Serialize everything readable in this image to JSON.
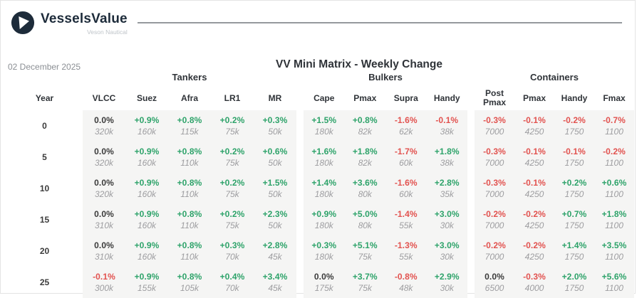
{
  "brand": {
    "name": "VesselsValue",
    "subtitle": "Veson Nautical"
  },
  "date": "02 December 2025",
  "title": "VV Mini Matrix - Weekly Change",
  "colors": {
    "positive": "#2ea36a",
    "negative": "#e2524f",
    "neutral": "#3b3b3b",
    "value_text": "#9d9da0",
    "block_bg": "#f5f5f4",
    "brand_navy": "#1d2b3a",
    "rule": "#95999d",
    "date_text": "#8b8f94",
    "header_text": "#2f3338"
  },
  "table": {
    "year_header": "Year",
    "groups": [
      {
        "label": "Tankers",
        "columns": [
          "VLCC",
          "Suez",
          "Afra",
          "LR1",
          "MR"
        ]
      },
      {
        "label": "Bulkers",
        "columns": [
          "Cape",
          "Pmax",
          "Supra",
          "Handy"
        ]
      },
      {
        "label": "Containers",
        "columns": [
          "Post Pmax",
          "Pmax",
          "Handy",
          "Fmax"
        ]
      }
    ],
    "rows": [
      {
        "year": "0",
        "cells": [
          [
            {
              "pct": "0.0%",
              "val": "320k"
            },
            {
              "pct": "+0.9%",
              "val": "160k"
            },
            {
              "pct": "+0.8%",
              "val": "115k"
            },
            {
              "pct": "+0.2%",
              "val": "75k"
            },
            {
              "pct": "+0.3%",
              "val": "50k"
            }
          ],
          [
            {
              "pct": "+1.5%",
              "val": "180k"
            },
            {
              "pct": "+0.8%",
              "val": "82k"
            },
            {
              "pct": "-1.6%",
              "val": "62k"
            },
            {
              "pct": "-0.1%",
              "val": "38k"
            }
          ],
          [
            {
              "pct": "-0.3%",
              "val": "7000"
            },
            {
              "pct": "-0.1%",
              "val": "4250"
            },
            {
              "pct": "-0.2%",
              "val": "1750"
            },
            {
              "pct": "-0.7%",
              "val": "1100"
            }
          ]
        ]
      },
      {
        "year": "5",
        "cells": [
          [
            {
              "pct": "0.0%",
              "val": "320k"
            },
            {
              "pct": "+0.9%",
              "val": "160k"
            },
            {
              "pct": "+0.8%",
              "val": "110k"
            },
            {
              "pct": "+0.2%",
              "val": "75k"
            },
            {
              "pct": "+0.6%",
              "val": "50k"
            }
          ],
          [
            {
              "pct": "+1.6%",
              "val": "180k"
            },
            {
              "pct": "+1.8%",
              "val": "82k"
            },
            {
              "pct": "-1.7%",
              "val": "60k"
            },
            {
              "pct": "+1.8%",
              "val": "38k"
            }
          ],
          [
            {
              "pct": "-0.3%",
              "val": "7000"
            },
            {
              "pct": "-0.1%",
              "val": "4250"
            },
            {
              "pct": "-0.1%",
              "val": "1750"
            },
            {
              "pct": "-0.2%",
              "val": "1100"
            }
          ]
        ]
      },
      {
        "year": "10",
        "cells": [
          [
            {
              "pct": "0.0%",
              "val": "320k"
            },
            {
              "pct": "+0.9%",
              "val": "160k"
            },
            {
              "pct": "+0.8%",
              "val": "110k"
            },
            {
              "pct": "+0.2%",
              "val": "75k"
            },
            {
              "pct": "+1.5%",
              "val": "50k"
            }
          ],
          [
            {
              "pct": "+1.4%",
              "val": "180k"
            },
            {
              "pct": "+3.6%",
              "val": "80k"
            },
            {
              "pct": "-1.6%",
              "val": "60k"
            },
            {
              "pct": "+2.8%",
              "val": "35k"
            }
          ],
          [
            {
              "pct": "-0.3%",
              "val": "7000"
            },
            {
              "pct": "-0.1%",
              "val": "4250"
            },
            {
              "pct": "+0.2%",
              "val": "1750"
            },
            {
              "pct": "+0.6%",
              "val": "1100"
            }
          ]
        ]
      },
      {
        "year": "15",
        "cells": [
          [
            {
              "pct": "0.0%",
              "val": "310k"
            },
            {
              "pct": "+0.9%",
              "val": "160k"
            },
            {
              "pct": "+0.8%",
              "val": "110k"
            },
            {
              "pct": "+0.2%",
              "val": "75k"
            },
            {
              "pct": "+2.3%",
              "val": "50k"
            }
          ],
          [
            {
              "pct": "+0.9%",
              "val": "180k"
            },
            {
              "pct": "+5.0%",
              "val": "80k"
            },
            {
              "pct": "-1.4%",
              "val": "55k"
            },
            {
              "pct": "+3.0%",
              "val": "30k"
            }
          ],
          [
            {
              "pct": "-0.2%",
              "val": "7000"
            },
            {
              "pct": "-0.2%",
              "val": "4250"
            },
            {
              "pct": "+0.7%",
              "val": "1750"
            },
            {
              "pct": "+1.8%",
              "val": "1100"
            }
          ]
        ]
      },
      {
        "year": "20",
        "cells": [
          [
            {
              "pct": "0.0%",
              "val": "310k"
            },
            {
              "pct": "+0.9%",
              "val": "160k"
            },
            {
              "pct": "+0.8%",
              "val": "110k"
            },
            {
              "pct": "+0.3%",
              "val": "70k"
            },
            {
              "pct": "+2.8%",
              "val": "45k"
            }
          ],
          [
            {
              "pct": "+0.3%",
              "val": "180k"
            },
            {
              "pct": "+5.1%",
              "val": "75k"
            },
            {
              "pct": "-1.3%",
              "val": "55k"
            },
            {
              "pct": "+3.0%",
              "val": "30k"
            }
          ],
          [
            {
              "pct": "-0.2%",
              "val": "7000"
            },
            {
              "pct": "-0.2%",
              "val": "4250"
            },
            {
              "pct": "+1.4%",
              "val": "1750"
            },
            {
              "pct": "+3.5%",
              "val": "1100"
            }
          ]
        ]
      },
      {
        "year": "25",
        "cells": [
          [
            {
              "pct": "-0.1%",
              "val": "300k"
            },
            {
              "pct": "+0.9%",
              "val": "155k"
            },
            {
              "pct": "+0.8%",
              "val": "105k"
            },
            {
              "pct": "+0.4%",
              "val": "70k"
            },
            {
              "pct": "+3.4%",
              "val": "45k"
            }
          ],
          [
            {
              "pct": "0.0%",
              "val": "175k"
            },
            {
              "pct": "+3.7%",
              "val": "75k"
            },
            {
              "pct": "-0.8%",
              "val": "48k"
            },
            {
              "pct": "+2.9%",
              "val": "30k"
            }
          ],
          [
            {
              "pct": "0.0%",
              "val": "6500"
            },
            {
              "pct": "-0.3%",
              "val": "4000"
            },
            {
              "pct": "+2.0%",
              "val": "1750"
            },
            {
              "pct": "+5.6%",
              "val": "1100"
            }
          ]
        ]
      }
    ]
  }
}
